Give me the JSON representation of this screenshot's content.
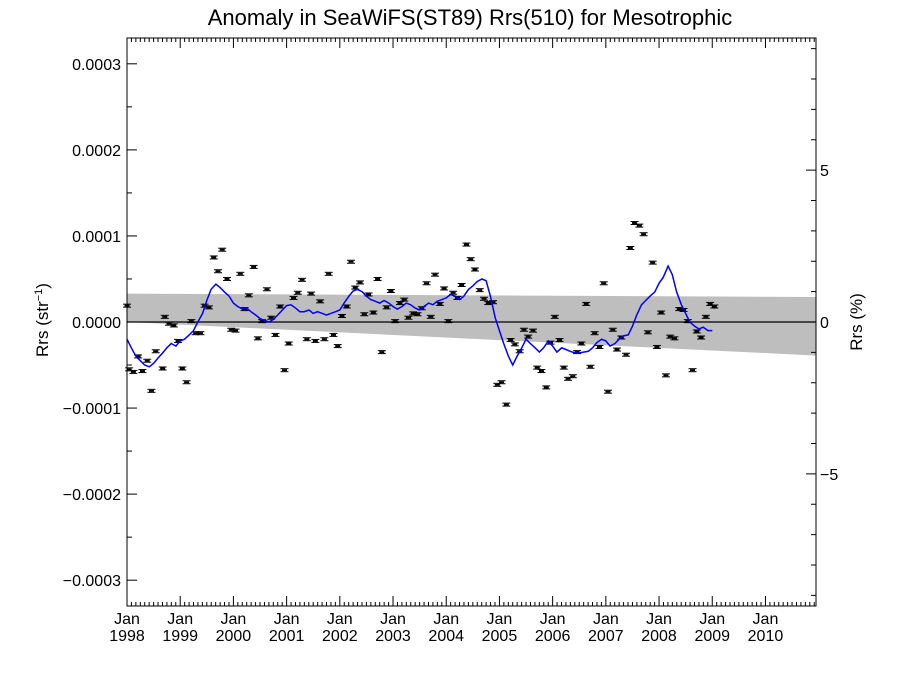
{
  "chart_data": {
    "type": "line",
    "title": "Anomaly in SeaWiFS(ST89) Rrs(510) for Mesotrophic",
    "ylabel_main": "Rrs (str",
    "ylabel_exp": "−1",
    "ylabel_close": ")",
    "y2label": "Rrs (%)",
    "xlim": [
      1998.0,
      2010.95
    ],
    "ylim": [
      -0.00033,
      0.00033
    ],
    "y2lim": [
      -9.35,
      9.35
    ],
    "grid": false,
    "y_ticks": [
      {
        "value": 0.0003,
        "label": "0.0003"
      },
      {
        "value": 0.0002,
        "label": "0.0002"
      },
      {
        "value": 0.0001,
        "label": "0.0001"
      },
      {
        "value": 0.0,
        "label": "0.0000"
      },
      {
        "value": -0.0001,
        "label": "−0.0001"
      },
      {
        "value": -0.0002,
        "label": "−0.0002"
      },
      {
        "value": -0.0003,
        "label": "−0.0003"
      }
    ],
    "y2_ticks": [
      {
        "value": 5,
        "label": "5"
      },
      {
        "value": 0,
        "label": "0"
      },
      {
        "value": -5,
        "label": "−5"
      }
    ],
    "x_ticks": [
      {
        "value": 1998,
        "month": "Jan",
        "year": "1998"
      },
      {
        "value": 1999,
        "month": "Jan",
        "year": "1999"
      },
      {
        "value": 2000,
        "month": "Jan",
        "year": "2000"
      },
      {
        "value": 2001,
        "month": "Jan",
        "year": "2001"
      },
      {
        "value": 2002,
        "month": "Jan",
        "year": "2002"
      },
      {
        "value": 2003,
        "month": "Jan",
        "year": "2003"
      },
      {
        "value": 2004,
        "month": "Jan",
        "year": "2004"
      },
      {
        "value": 2005,
        "month": "Jan",
        "year": "2005"
      },
      {
        "value": 2006,
        "month": "Jan",
        "year": "2006"
      },
      {
        "value": 2007,
        "month": "Jan",
        "year": "2007"
      },
      {
        "value": 2008,
        "month": "Jan",
        "year": "2008"
      },
      {
        "value": 2009,
        "month": "Jan",
        "year": "2009"
      },
      {
        "value": 2010,
        "month": "Jan",
        "year": "2010"
      }
    ],
    "band": {
      "x": [
        1998.0,
        2010.95
      ],
      "upper": [
        3.3e-05,
        2.9e-05
      ],
      "lower": [
        0.0,
        -3.9e-05
      ],
      "color": "#bebebe"
    },
    "zero_line_color": "#000000",
    "points_color": "#000000",
    "line_color": "#0000ff",
    "points": [
      [
        1998.0,
        1.9e-05
      ],
      [
        1998.04,
        -5.5e-05
      ],
      [
        1998.12,
        -5.8e-05
      ],
      [
        1998.21,
        -4e-05
      ],
      [
        1998.29,
        -5.7e-05
      ],
      [
        1998.38,
        -4.5e-05
      ],
      [
        1998.46,
        -8e-05
      ],
      [
        1998.54,
        -3.4e-05
      ],
      [
        1998.67,
        -5.4e-05
      ],
      [
        1998.71,
        6e-06
      ],
      [
        1998.79,
        -2e-06
      ],
      [
        1998.88,
        -4e-06
      ],
      [
        1998.96,
        -2.2e-05
      ],
      [
        1999.04,
        -5.4e-05
      ],
      [
        1999.12,
        -7e-05
      ],
      [
        1999.21,
        1e-06
      ],
      [
        1999.29,
        -1.3e-05
      ],
      [
        1999.38,
        -1.3e-05
      ],
      [
        1999.46,
        1.9e-05
      ],
      [
        1999.54,
        1.7e-05
      ],
      [
        1999.63,
        7.5e-05
      ],
      [
        1999.71,
        5.9e-05
      ],
      [
        1999.79,
        8.4e-05
      ],
      [
        1999.88,
        5e-05
      ],
      [
        1999.96,
        -9e-06
      ],
      [
        2000.04,
        -1e-05
      ],
      [
        2000.13,
        5.6e-05
      ],
      [
        2000.21,
        1.5e-05
      ],
      [
        2000.29,
        3.1e-05
      ],
      [
        2000.38,
        6.4e-05
      ],
      [
        2000.46,
        -1.9e-05
      ],
      [
        2000.54,
        1e-06
      ],
      [
        2000.63,
        3.8e-05
      ],
      [
        2000.71,
        5e-06
      ],
      [
        2000.79,
        -1.5e-05
      ],
      [
        2000.88,
        1.8e-05
      ],
      [
        2000.96,
        -5.6e-05
      ],
      [
        2001.04,
        -2.5e-05
      ],
      [
        2001.13,
        2.8e-05
      ],
      [
        2001.21,
        3.4e-05
      ],
      [
        2001.29,
        4.9e-05
      ],
      [
        2001.38,
        -2e-05
      ],
      [
        2001.46,
        3.3e-05
      ],
      [
        2001.54,
        -2.2e-05
      ],
      [
        2001.63,
        2.4e-05
      ],
      [
        2001.71,
        -2e-05
      ],
      [
        2001.79,
        5.6e-05
      ],
      [
        2001.88,
        -1.5e-05
      ],
      [
        2001.96,
        -2.8e-05
      ],
      [
        2002.04,
        7e-06
      ],
      [
        2002.13,
        1.8e-05
      ],
      [
        2002.21,
        7e-05
      ],
      [
        2002.29,
        4e-05
      ],
      [
        2002.38,
        4.6e-05
      ],
      [
        2002.46,
        9e-06
      ],
      [
        2002.54,
        3.2e-05
      ],
      [
        2002.63,
        1.1e-05
      ],
      [
        2002.71,
        5e-05
      ],
      [
        2002.79,
        -3.5e-05
      ],
      [
        2002.88,
        1.7e-05
      ],
      [
        2002.96,
        3.6e-05
      ],
      [
        2003.04,
        1e-06
      ],
      [
        2003.13,
        2.2e-05
      ],
      [
        2003.21,
        2.6e-05
      ],
      [
        2003.29,
        5e-06
      ],
      [
        2003.38,
        1e-05
      ],
      [
        2003.46,
        9e-06
      ],
      [
        2003.54,
        1.6e-05
      ],
      [
        2003.63,
        4.5e-05
      ],
      [
        2003.71,
        6e-06
      ],
      [
        2003.79,
        5.5e-05
      ],
      [
        2003.88,
        2.1e-05
      ],
      [
        2003.96,
        3.9e-05
      ],
      [
        2004.04,
        1e-06
      ],
      [
        2004.13,
        3.4e-05
      ],
      [
        2004.21,
        2.8e-05
      ],
      [
        2004.29,
        4.3e-05
      ],
      [
        2004.38,
        9e-05
      ],
      [
        2004.46,
        7.3e-05
      ],
      [
        2004.54,
        6.1e-05
      ],
      [
        2004.63,
        3.7e-05
      ],
      [
        2004.71,
        2.7e-05
      ],
      [
        2004.79,
        2.2e-05
      ],
      [
        2004.88,
        2.3e-05
      ],
      [
        2004.96,
        -7.3e-05
      ],
      [
        2005.04,
        -7e-05
      ],
      [
        2005.13,
        -9.6e-05
      ],
      [
        2005.21,
        -2.1e-05
      ],
      [
        2005.29,
        -2.6e-05
      ],
      [
        2005.38,
        -3.4e-05
      ],
      [
        2005.46,
        -9e-06
      ],
      [
        2005.54,
        -1.7e-05
      ],
      [
        2005.63,
        -1e-05
      ],
      [
        2005.71,
        -5.3e-05
      ],
      [
        2005.79,
        -5.7e-05
      ],
      [
        2005.88,
        -7.6e-05
      ],
      [
        2005.96,
        -2.4e-05
      ],
      [
        2006.04,
        6e-06
      ],
      [
        2006.13,
        -2.1e-05
      ],
      [
        2006.21,
        -5.3e-05
      ],
      [
        2006.29,
        -6.6e-05
      ],
      [
        2006.38,
        -6.3e-05
      ],
      [
        2006.46,
        -3.5e-05
      ],
      [
        2006.54,
        -2.5e-05
      ],
      [
        2006.63,
        2.1e-05
      ],
      [
        2006.71,
        -5.2e-05
      ],
      [
        2006.79,
        -1.3e-05
      ],
      [
        2006.88,
        -2.9e-05
      ],
      [
        2006.96,
        4.5e-05
      ],
      [
        2007.04,
        -8.1e-05
      ],
      [
        2007.13,
        -9e-06
      ],
      [
        2007.21,
        -3.2e-05
      ],
      [
        2007.29,
        -1.8e-05
      ],
      [
        2007.38,
        -3.8e-05
      ],
      [
        2007.46,
        8.6e-05
      ],
      [
        2007.54,
        0.000115
      ],
      [
        2007.63,
        0.000112
      ],
      [
        2007.71,
        0.000102
      ],
      [
        2007.79,
        -1.2e-05
      ],
      [
        2007.88,
        6.9e-05
      ],
      [
        2007.96,
        -2.9e-05
      ],
      [
        2008.04,
        1.1e-05
      ],
      [
        2008.13,
        -6.2e-05
      ],
      [
        2008.21,
        -1.7e-05
      ],
      [
        2008.29,
        -1.9e-05
      ],
      [
        2008.38,
        1.5e-05
      ],
      [
        2008.46,
        1.4e-05
      ],
      [
        2008.54,
        1e-06
      ],
      [
        2008.63,
        -5.6e-05
      ],
      [
        2008.71,
        -1.1e-05
      ],
      [
        2008.79,
        -1.8e-05
      ],
      [
        2008.88,
        6e-06
      ],
      [
        2008.96,
        2.1e-05
      ],
      [
        2009.04,
        1.8e-05
      ]
    ],
    "line": [
      [
        1998.0,
        -2e-05
      ],
      [
        1998.08,
        -3e-05
      ],
      [
        1998.17,
        -4e-05
      ],
      [
        1998.25,
        -4.5e-05
      ],
      [
        1998.33,
        -5e-05
      ],
      [
        1998.42,
        -5.2e-05
      ],
      [
        1998.5,
        -4.8e-05
      ],
      [
        1998.58,
        -4.2e-05
      ],
      [
        1998.67,
        -3.6e-05
      ],
      [
        1998.75,
        -3e-05
      ],
      [
        1998.83,
        -2.5e-05
      ],
      [
        1998.92,
        -2.8e-05
      ],
      [
        1999.0,
        -2.2e-05
      ],
      [
        1999.08,
        -2e-05
      ],
      [
        1999.17,
        -1.5e-05
      ],
      [
        1999.25,
        -1e-05
      ],
      [
        1999.33,
        0.0
      ],
      [
        1999.42,
        1e-05
      ],
      [
        1999.5,
        2.5e-05
      ],
      [
        1999.58,
        3.8e-05
      ],
      [
        1999.67,
        4.4e-05
      ],
      [
        1999.75,
        4e-05
      ],
      [
        1999.83,
        3.5e-05
      ],
      [
        1999.92,
        3e-05
      ],
      [
        2000.0,
        2.2e-05
      ],
      [
        2000.08,
        1.8e-05
      ],
      [
        2000.17,
        1.5e-05
      ],
      [
        2000.25,
        1.6e-05
      ],
      [
        2000.33,
        1.2e-05
      ],
      [
        2000.42,
        8e-06
      ],
      [
        2000.5,
        4e-06
      ],
      [
        2000.58,
        2e-06
      ],
      [
        2000.67,
        0.0
      ],
      [
        2000.75,
        3e-06
      ],
      [
        2000.83,
        8e-06
      ],
      [
        2000.92,
        1.4e-05
      ],
      [
        2001.0,
        1.9e-05
      ],
      [
        2001.08,
        2e-05
      ],
      [
        2001.17,
        1.6e-05
      ],
      [
        2001.25,
        1.2e-05
      ],
      [
        2001.33,
        1.2e-05
      ],
      [
        2001.42,
        1.4e-05
      ],
      [
        2001.5,
        1e-05
      ],
      [
        2001.58,
        1.2e-05
      ],
      [
        2001.67,
        1e-05
      ],
      [
        2001.75,
        8e-06
      ],
      [
        2001.83,
        1e-05
      ],
      [
        2001.92,
        1.2e-05
      ],
      [
        2002.0,
        1.4e-05
      ],
      [
        2002.08,
        2.2e-05
      ],
      [
        2002.17,
        3e-05
      ],
      [
        2002.25,
        3.6e-05
      ],
      [
        2002.33,
        3.8e-05
      ],
      [
        2002.42,
        3.5e-05
      ],
      [
        2002.5,
        3e-05
      ],
      [
        2002.58,
        2.6e-05
      ],
      [
        2002.67,
        2.4e-05
      ],
      [
        2002.75,
        2.2e-05
      ],
      [
        2002.83,
        2.5e-05
      ],
      [
        2002.92,
        2.2e-05
      ],
      [
        2003.0,
        1.8e-05
      ],
      [
        2003.08,
        1.5e-05
      ],
      [
        2003.17,
        1.8e-05
      ],
      [
        2003.25,
        2.2e-05
      ],
      [
        2003.33,
        2e-05
      ],
      [
        2003.42,
        1.6e-05
      ],
      [
        2003.5,
        1.4e-05
      ],
      [
        2003.58,
        1.8e-05
      ],
      [
        2003.67,
        2.2e-05
      ],
      [
        2003.75,
        2e-05
      ],
      [
        2003.83,
        2.4e-05
      ],
      [
        2003.92,
        2.6e-05
      ],
      [
        2004.0,
        2.8e-05
      ],
      [
        2004.08,
        3.2e-05
      ],
      [
        2004.17,
        3e-05
      ],
      [
        2004.25,
        2.6e-05
      ],
      [
        2004.33,
        3e-05
      ],
      [
        2004.42,
        3.8e-05
      ],
      [
        2004.5,
        4.2e-05
      ],
      [
        2004.58,
        4.7e-05
      ],
      [
        2004.67,
        5e-05
      ],
      [
        2004.75,
        4.8e-05
      ],
      [
        2004.83,
        3e-05
      ],
      [
        2004.92,
        5e-06
      ],
      [
        2005.0,
        -1e-05
      ],
      [
        2005.08,
        -2.5e-05
      ],
      [
        2005.17,
        -4e-05
      ],
      [
        2005.25,
        -5e-05
      ],
      [
        2005.33,
        -4e-05
      ],
      [
        2005.42,
        -3e-05
      ],
      [
        2005.5,
        -2e-05
      ],
      [
        2005.58,
        -2.5e-05
      ],
      [
        2005.67,
        -3e-05
      ],
      [
        2005.75,
        -3.5e-05
      ],
      [
        2005.83,
        -3e-05
      ],
      [
        2005.92,
        -2.2e-05
      ],
      [
        2006.0,
        -2.8e-05
      ],
      [
        2006.08,
        -3.5e-05
      ],
      [
        2006.17,
        -3e-05
      ],
      [
        2006.25,
        -3.2e-05
      ],
      [
        2006.33,
        -3.4e-05
      ],
      [
        2006.42,
        -3.6e-05
      ],
      [
        2006.5,
        -3.6e-05
      ],
      [
        2006.58,
        -3.5e-05
      ],
      [
        2006.67,
        -3.4e-05
      ],
      [
        2006.75,
        -3e-05
      ],
      [
        2006.83,
        -2.4e-05
      ],
      [
        2006.92,
        -2e-05
      ],
      [
        2007.0,
        -2.2e-05
      ],
      [
        2007.08,
        -2.8e-05
      ],
      [
        2007.17,
        -2.5e-05
      ],
      [
        2007.25,
        -2e-05
      ],
      [
        2007.33,
        -1.6e-05
      ],
      [
        2007.42,
        -1.5e-05
      ],
      [
        2007.5,
        -5e-06
      ],
      [
        2007.58,
        8e-06
      ],
      [
        2007.67,
        2e-05
      ],
      [
        2007.75,
        2.5e-05
      ],
      [
        2007.83,
        3e-05
      ],
      [
        2007.92,
        3.5e-05
      ],
      [
        2008.0,
        4.5e-05
      ],
      [
        2008.08,
        5.2e-05
      ],
      [
        2008.17,
        6.5e-05
      ],
      [
        2008.25,
        5.5e-05
      ],
      [
        2008.33,
        3.5e-05
      ],
      [
        2008.42,
        2e-05
      ],
      [
        2008.5,
        1e-05
      ],
      [
        2008.58,
        0.0
      ],
      [
        2008.67,
        -5e-06
      ],
      [
        2008.75,
        -8e-06
      ],
      [
        2008.83,
        -6e-06
      ],
      [
        2008.92,
        -1e-05
      ],
      [
        2009.0,
        -1e-05
      ]
    ]
  }
}
